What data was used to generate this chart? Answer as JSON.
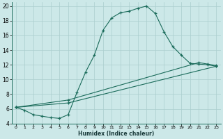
{
  "xlabel": "Humidex (Indice chaleur)",
  "xlim": [
    -0.5,
    23.5
  ],
  "ylim": [
    4,
    20.5
  ],
  "xticks": [
    0,
    1,
    2,
    3,
    4,
    5,
    6,
    7,
    8,
    9,
    10,
    11,
    12,
    13,
    14,
    15,
    16,
    17,
    18,
    19,
    20,
    21,
    22,
    23
  ],
  "yticks": [
    4,
    6,
    8,
    10,
    12,
    14,
    16,
    18,
    20
  ],
  "bg_color": "#cce8e8",
  "line_color": "#1a6b5a",
  "line1_x": [
    0,
    1,
    2,
    3,
    4,
    5,
    6,
    7,
    8,
    9,
    10,
    11,
    12,
    13,
    14,
    15,
    16,
    17,
    18,
    19,
    20,
    21,
    22,
    23
  ],
  "line1_y": [
    6.2,
    5.8,
    5.2,
    5.0,
    4.8,
    4.7,
    5.2,
    8.2,
    11.0,
    13.3,
    16.7,
    18.4,
    19.1,
    19.3,
    19.7,
    20.0,
    19.0,
    16.5,
    14.5,
    13.3,
    12.2,
    12.1,
    12.0,
    11.8
  ],
  "line2_x": [
    0,
    6,
    23
  ],
  "line2_y": [
    6.2,
    6.8,
    11.8
  ],
  "line3_x": [
    0,
    6,
    21,
    22,
    23
  ],
  "line3_y": [
    6.2,
    7.2,
    12.3,
    12.1,
    11.9
  ],
  "grid_color": "#aacece",
  "grid_minor_color": "#b8d8d8"
}
